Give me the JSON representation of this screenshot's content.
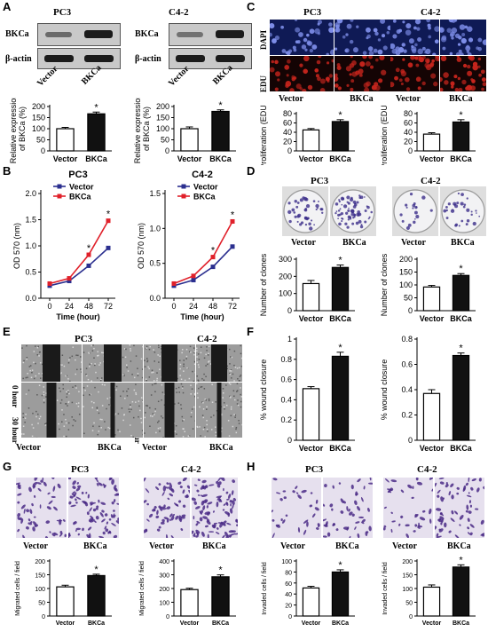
{
  "panels": {
    "A": {
      "letter": "A",
      "titles": [
        "PC3",
        "C4-2"
      ],
      "blot_rows": [
        "BKCa",
        "β-actin"
      ],
      "lane_labels": [
        "Vector",
        "BKCa"
      ],
      "charts": [
        {
          "ylabel": "Relative expression\nof BKCa (%)",
          "ticks": [
            0,
            50,
            100,
            150,
            200
          ],
          "ylim": [
            0,
            200
          ],
          "categories": [
            "Vector",
            "BKCa"
          ],
          "values": [
            100,
            167
          ],
          "errors": [
            6,
            8
          ],
          "star": "*"
        },
        {
          "ylabel": "Relative expression\nof BKCa (%)",
          "ticks": [
            0,
            50,
            100,
            150,
            200
          ],
          "ylim": [
            0,
            200
          ],
          "categories": [
            "Vector",
            "BKCa"
          ],
          "values": [
            100,
            178
          ],
          "errors": [
            8,
            7
          ],
          "star": "*"
        }
      ]
    },
    "B": {
      "letter": "B",
      "charts": [
        {
          "title": "PC3",
          "ylabel": "OD 570 (nm)",
          "xlabel": "Time (hour)",
          "x": [
            0,
            24,
            48,
            72
          ],
          "xticks": [
            0,
            24,
            48,
            72
          ],
          "yticks": [
            0.0,
            0.5,
            1.0,
            1.5,
            2.0
          ],
          "ylim": [
            0,
            2.0
          ],
          "series": [
            {
              "name": "Vector",
              "color": "#2b2f8f",
              "values": [
                0.24,
                0.33,
                0.62,
                0.96
              ]
            },
            {
              "name": "BKCa",
              "color": "#e0202a",
              "values": [
                0.28,
                0.38,
                0.83,
                1.48
              ]
            }
          ],
          "stars": [
            "*",
            "*"
          ]
        },
        {
          "title": "C4-2",
          "ylabel": "OD 570 (nm)",
          "xlabel": "Time (hour)",
          "x": [
            0,
            24,
            48,
            72
          ],
          "xticks": [
            0,
            24,
            48,
            72
          ],
          "yticks": [
            0.0,
            0.5,
            1.0,
            1.5
          ],
          "ylim": [
            0,
            1.5
          ],
          "series": [
            {
              "name": "Vector",
              "color": "#2b2f8f",
              "values": [
                0.18,
                0.26,
                0.45,
                0.74
              ]
            },
            {
              "name": "BKCa",
              "color": "#e0202a",
              "values": [
                0.21,
                0.32,
                0.59,
                1.1
              ]
            }
          ],
          "stars": [
            "*",
            "*"
          ]
        }
      ]
    },
    "C": {
      "letter": "C",
      "titles": [
        "PC3",
        "C4-2"
      ],
      "row_labels": [
        "DAPI",
        "EDU"
      ],
      "lane_labels": [
        "Vector",
        "BKCa"
      ],
      "charts": [
        {
          "ylabel": "Proliferation (EDU%)",
          "ticks": [
            0,
            20,
            40,
            60,
            80
          ],
          "ylim": [
            0,
            80
          ],
          "categories": [
            "Vector",
            "BKCa"
          ],
          "values": [
            45,
            63
          ],
          "errors": [
            3,
            4
          ],
          "star": "*"
        },
        {
          "ylabel": "Proliferation (EDU%)",
          "ticks": [
            0,
            20,
            40,
            60,
            80
          ],
          "ylim": [
            0,
            80
          ],
          "categories": [
            "Vector",
            "BKCa"
          ],
          "values": [
            36,
            62
          ],
          "errors": [
            3,
            5
          ],
          "star": "*"
        }
      ]
    },
    "D": {
      "letter": "D",
      "titles": [
        "PC3",
        "C4-2"
      ],
      "lane_labels": [
        "Vector",
        "BKCa"
      ],
      "charts": [
        {
          "ylabel": "Number of clones",
          "ticks": [
            0,
            100,
            200,
            300
          ],
          "ylim": [
            0,
            300
          ],
          "categories": [
            "Vector",
            "BKCa"
          ],
          "values": [
            158,
            252
          ],
          "errors": [
            18,
            14
          ],
          "star": "*"
        },
        {
          "ylabel": "Number of clones",
          "ticks": [
            0,
            50,
            100,
            150,
            200
          ],
          "ylim": [
            0,
            200
          ],
          "categories": [
            "Vector",
            "BKCa"
          ],
          "values": [
            92,
            137
          ],
          "errors": [
            6,
            7
          ],
          "star": "*"
        }
      ]
    },
    "E": {
      "letter": "E",
      "titles": [
        "PC3",
        "C4-2"
      ],
      "row_labels": [
        "0 hour",
        "30 hour"
      ],
      "lane_labels": [
        "Vector",
        "BKCa"
      ]
    },
    "F": {
      "letter": "F",
      "charts": [
        {
          "ylabel": "% wound closure",
          "ticks": [
            0.0,
            0.2,
            0.4,
            0.6,
            0.8,
            1.0
          ],
          "ylim": [
            0,
            1.0
          ],
          "categories": [
            "Vector",
            "BKCa"
          ],
          "values": [
            0.51,
            0.83
          ],
          "errors": [
            0.02,
            0.04
          ],
          "star": "*"
        },
        {
          "ylabel": "% wound closure",
          "ticks": [
            0.0,
            0.2,
            0.4,
            0.6,
            0.8
          ],
          "ylim": [
            0,
            0.8
          ],
          "categories": [
            "Vector",
            "BKCa"
          ],
          "values": [
            0.37,
            0.67
          ],
          "errors": [
            0.03,
            0.02
          ],
          "star": "*"
        }
      ]
    },
    "G": {
      "letter": "G",
      "titles": [
        "PC3",
        "C4-2"
      ],
      "lane_labels": [
        "Vector",
        "BKCa"
      ],
      "charts": [
        {
          "ylabel": "Migrated cells / field",
          "ticks": [
            0,
            50,
            100,
            150,
            200
          ],
          "ylim": [
            0,
            200
          ],
          "categories": [
            "Vector",
            "BKCa"
          ],
          "values": [
            106,
            147
          ],
          "errors": [
            6,
            5
          ],
          "star": "*"
        },
        {
          "ylabel": "Migrated cells / field",
          "ticks": [
            0,
            100,
            200,
            300,
            400
          ],
          "ylim": [
            0,
            400
          ],
          "categories": [
            "Vector",
            "BKCa"
          ],
          "values": [
            192,
            285
          ],
          "errors": [
            10,
            14
          ],
          "star": "*"
        }
      ]
    },
    "H": {
      "letter": "H",
      "titles": [
        "PC3",
        "C4-2"
      ],
      "lane_labels": [
        "Vector",
        "BKCa"
      ],
      "charts": [
        {
          "ylabel": "Invaded cells / field",
          "ticks": [
            0,
            20,
            40,
            60,
            80,
            100
          ],
          "ylim": [
            0,
            100
          ],
          "categories": [
            "Vector",
            "BKCa"
          ],
          "values": [
            51,
            80
          ],
          "errors": [
            3,
            4
          ],
          "star": "*"
        },
        {
          "ylabel": "Invaded cells / field",
          "ticks": [
            0,
            50,
            100,
            150,
            200
          ],
          "ylim": [
            0,
            200
          ],
          "categories": [
            "Vector",
            "BKCa"
          ],
          "values": [
            105,
            178
          ],
          "errors": [
            8,
            8
          ],
          "star": "*"
        }
      ]
    }
  },
  "colors": {
    "vector_bar": "#ffffff",
    "bkca_bar": "#111111",
    "vector_line": "#2b2f8f",
    "bkca_line": "#e0202a"
  },
  "chart_data": [
    {
      "type": "bar",
      "categories": [
        "Vector",
        "BKCa"
      ],
      "values": [
        100,
        167
      ],
      "ylabel": "Relative expression of BKCa (%)",
      "ylim": [
        0,
        200
      ]
    },
    {
      "type": "bar",
      "categories": [
        "Vector",
        "BKCa"
      ],
      "values": [
        100,
        178
      ],
      "ylabel": "Relative expression of BKCa (%)",
      "ylim": [
        0,
        200
      ]
    },
    {
      "type": "line",
      "title": "PC3",
      "x": [
        0,
        24,
        48,
        72
      ],
      "xlabel": "Time (hour)",
      "ylabel": "OD 570 (nm)",
      "ylim": [
        0,
        2.0
      ],
      "series": [
        {
          "name": "Vector",
          "values": [
            0.24,
            0.33,
            0.62,
            0.96
          ]
        },
        {
          "name": "BKCa",
          "values": [
            0.28,
            0.38,
            0.83,
            1.48
          ]
        }
      ]
    },
    {
      "type": "line",
      "title": "C4-2",
      "x": [
        0,
        24,
        48,
        72
      ],
      "xlabel": "Time (hour)",
      "ylabel": "OD 570 (nm)",
      "ylim": [
        0,
        1.5
      ],
      "series": [
        {
          "name": "Vector",
          "values": [
            0.18,
            0.26,
            0.45,
            0.74
          ]
        },
        {
          "name": "BKCa",
          "values": [
            0.21,
            0.32,
            0.59,
            1.1
          ]
        }
      ]
    },
    {
      "type": "bar",
      "categories": [
        "Vector",
        "BKCa"
      ],
      "values": [
        45,
        63
      ],
      "ylabel": "Proliferation (EDU%)",
      "ylim": [
        0,
        80
      ]
    },
    {
      "type": "bar",
      "categories": [
        "Vector",
        "BKCa"
      ],
      "values": [
        36,
        62
      ],
      "ylabel": "Proliferation (EDU%)",
      "ylim": [
        0,
        80
      ]
    },
    {
      "type": "bar",
      "categories": [
        "Vector",
        "BKCa"
      ],
      "values": [
        158,
        252
      ],
      "ylabel": "Number of clones",
      "ylim": [
        0,
        300
      ]
    },
    {
      "type": "bar",
      "categories": [
        "Vector",
        "BKCa"
      ],
      "values": [
        92,
        137
      ],
      "ylabel": "Number of clones",
      "ylim": [
        0,
        200
      ]
    },
    {
      "type": "bar",
      "categories": [
        "Vector",
        "BKCa"
      ],
      "values": [
        0.51,
        0.83
      ],
      "ylabel": "% wound closure",
      "ylim": [
        0,
        1.0
      ]
    },
    {
      "type": "bar",
      "categories": [
        "Vector",
        "BKCa"
      ],
      "values": [
        0.37,
        0.67
      ],
      "ylabel": "% wound closure",
      "ylim": [
        0,
        0.8
      ]
    },
    {
      "type": "bar",
      "categories": [
        "Vector",
        "BKCa"
      ],
      "values": [
        106,
        147
      ],
      "ylabel": "Migrated cells / field",
      "ylim": [
        0,
        200
      ]
    },
    {
      "type": "bar",
      "categories": [
        "Vector",
        "BKCa"
      ],
      "values": [
        192,
        285
      ],
      "ylabel": "Migrated cells / field",
      "ylim": [
        0,
        400
      ]
    },
    {
      "type": "bar",
      "categories": [
        "Vector",
        "BKCa"
      ],
      "values": [
        51,
        80
      ],
      "ylabel": "Invaded cells / field",
      "ylim": [
        0,
        100
      ]
    },
    {
      "type": "bar",
      "categories": [
        "Vector",
        "BKCa"
      ],
      "values": [
        105,
        178
      ],
      "ylabel": "Invaded cells / field",
      "ylim": [
        0,
        200
      ]
    }
  ]
}
